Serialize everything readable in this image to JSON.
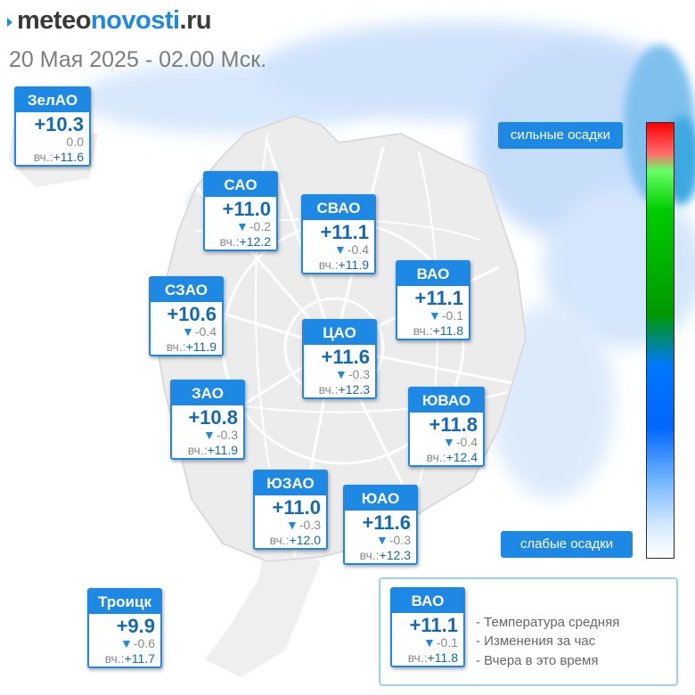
{
  "logo": {
    "part1": "meteo",
    "part2": "novosti",
    "part3": ".ru"
  },
  "date": "20 Мая 2025 - 02.00 Мск.",
  "districts": [
    {
      "name": "ЗелАО",
      "temp": "+10.3",
      "arrow": "",
      "change": "0.0",
      "yest_label": "вч.:",
      "yest": "+11.6"
    },
    {
      "name": "САО",
      "temp": "+11.0",
      "arrow": "▼",
      "change": "-0.2",
      "yest_label": "вч.:",
      "yest": "+12.2"
    },
    {
      "name": "СВАО",
      "temp": "+11.1",
      "arrow": "▼",
      "change": "-0.4",
      "yest_label": "вч.:",
      "yest": "+11.9"
    },
    {
      "name": "ВАО",
      "temp": "+11.1",
      "arrow": "▼",
      "change": "-0.1",
      "yest_label": "вч.:",
      "yest": "+11.8"
    },
    {
      "name": "СЗАО",
      "temp": "+10.6",
      "arrow": "▼",
      "change": "-0.4",
      "yest_label": "вч.:",
      "yest": "+11.9"
    },
    {
      "name": "ЦАО",
      "temp": "+11.6",
      "arrow": "▼",
      "change": "-0.3",
      "yest_label": "вч.:",
      "yest": "+12.3"
    },
    {
      "name": "ЗАО",
      "temp": "+10.8",
      "arrow": "▼",
      "change": "-0.3",
      "yest_label": "вч.:",
      "yest": "+11.9"
    },
    {
      "name": "ЮВАО",
      "temp": "+11.8",
      "arrow": "▼",
      "change": "-0.4",
      "yest_label": "вч.:",
      "yest": "+12.4"
    },
    {
      "name": "ЮЗАО",
      "temp": "+11.0",
      "arrow": "▼",
      "change": "-0.3",
      "yest_label": "вч.:",
      "yest": "+12.0"
    },
    {
      "name": "ЮАО",
      "temp": "+11.6",
      "arrow": "▼",
      "change": "-0.3",
      "yest_label": "вч.:",
      "yest": "+12.3"
    },
    {
      "name": "Троицк",
      "temp": "+9.9",
      "arrow": "▼",
      "change": "-0.6",
      "yest_label": "вч.:",
      "yest": "+11.7"
    }
  ],
  "scale": {
    "top_label": "сильные осадки",
    "bottom_label": "слабые осадки"
  },
  "legend": {
    "example": {
      "name": "ВАО",
      "temp": "+11.1",
      "arrow": "▼",
      "change": "-0.1",
      "yest_label": "вч.:",
      "yest": "+11.8"
    },
    "lines": [
      "- Температура средняя",
      "- Изменения за час",
      "- Вчера в это время"
    ]
  },
  "colors": {
    "accent": "#1e88e5",
    "value_text": "#1469b4",
    "precip_light": "#cfe3fb",
    "map_area": "#ededed",
    "roads": "#ffffff"
  }
}
